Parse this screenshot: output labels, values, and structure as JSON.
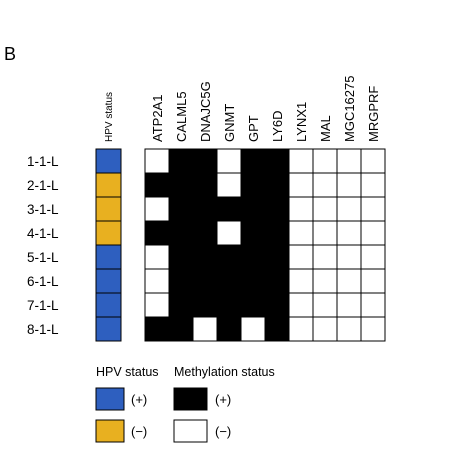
{
  "panel_label": "B",
  "chart_data": {
    "type": "heatmap",
    "hpv_column_label": "HPV status",
    "columns": [
      "ATP2A1",
      "CALML5",
      "DNAJC5G",
      "GNMT",
      "GPT",
      "LY6D",
      "LYNX1",
      "MAL",
      "MGC16275",
      "MRGPRF"
    ],
    "rows": [
      "1-1-L",
      "2-1-L",
      "3-1-L",
      "4-1-L",
      "5-1-L",
      "6-1-L",
      "7-1-L",
      "8-1-L"
    ],
    "hpv_status": [
      "+",
      "-",
      "-",
      "-",
      "+",
      "+",
      "+",
      "+"
    ],
    "methylation": [
      [
        0,
        1,
        1,
        0,
        1,
        1,
        0,
        0,
        0,
        0
      ],
      [
        1,
        1,
        1,
        0,
        1,
        1,
        0,
        0,
        0,
        0
      ],
      [
        0,
        1,
        1,
        1,
        1,
        1,
        0,
        0,
        0,
        0
      ],
      [
        1,
        1,
        1,
        0,
        1,
        1,
        0,
        0,
        0,
        0
      ],
      [
        0,
        1,
        1,
        1,
        1,
        1,
        0,
        0,
        0,
        0
      ],
      [
        0,
        1,
        1,
        1,
        1,
        1,
        0,
        0,
        0,
        0
      ],
      [
        0,
        1,
        1,
        1,
        1,
        1,
        0,
        0,
        0,
        0
      ],
      [
        1,
        1,
        0,
        1,
        0,
        1,
        0,
        0,
        0,
        0
      ]
    ],
    "colors": {
      "hpv_positive": "#2e5fbf",
      "hpv_negative": "#e8b020",
      "methylated": "#000000",
      "unmethylated": "#ffffff"
    },
    "legend": {
      "hpv_title": "HPV status",
      "methylation_title": "Methylation status",
      "positive_label": "(+)",
      "negative_label": "(−)"
    }
  }
}
